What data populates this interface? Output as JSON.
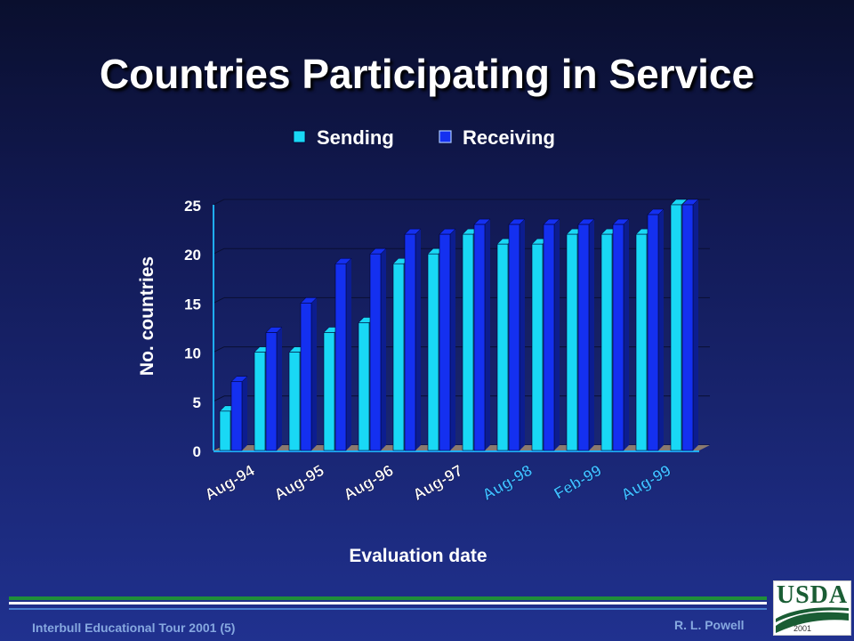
{
  "slide": {
    "title": "Countries Participating in Service",
    "footer_left": "Interbull Educational Tour 2001 (5)",
    "footer_right": "R. L. Powell",
    "logo_text": "USDA",
    "logo_year": "2001"
  },
  "colors": {
    "sending": "#19d8f5",
    "receiving": "#1430f0",
    "axis_text": "#ffffff",
    "tick_label_white": "#ffffff",
    "tick_label_cyan": "#3fb8ff",
    "floor": "#8a7a70"
  },
  "chart_data": {
    "type": "bar",
    "style": "3d-clustered",
    "categories": [
      "Aug-94",
      "",
      "Aug-95",
      "",
      "Aug-96",
      "",
      "Aug-97",
      "",
      "Aug-98",
      "",
      "Feb-99",
      "",
      "Aug-99",
      ""
    ],
    "series": [
      {
        "name": "Sending",
        "values": [
          4,
          10,
          10,
          12,
          13,
          19,
          20,
          22,
          21,
          21,
          22,
          22,
          22,
          25
        ]
      },
      {
        "name": "Receiving",
        "values": [
          7,
          12,
          15,
          19,
          20,
          22,
          22,
          23,
          23,
          23,
          23,
          23,
          24,
          25
        ]
      }
    ],
    "xlabel": "Evaluation date",
    "ylabel": "No. countries",
    "ylim": [
      0,
      25
    ],
    "yticks": [
      "0",
      "5",
      "10",
      "15",
      "20",
      "25"
    ],
    "grid": true,
    "legend": "top",
    "xtick_colors": [
      "white",
      "white",
      "white",
      "white",
      "cyan",
      "cyan",
      "cyan"
    ]
  }
}
